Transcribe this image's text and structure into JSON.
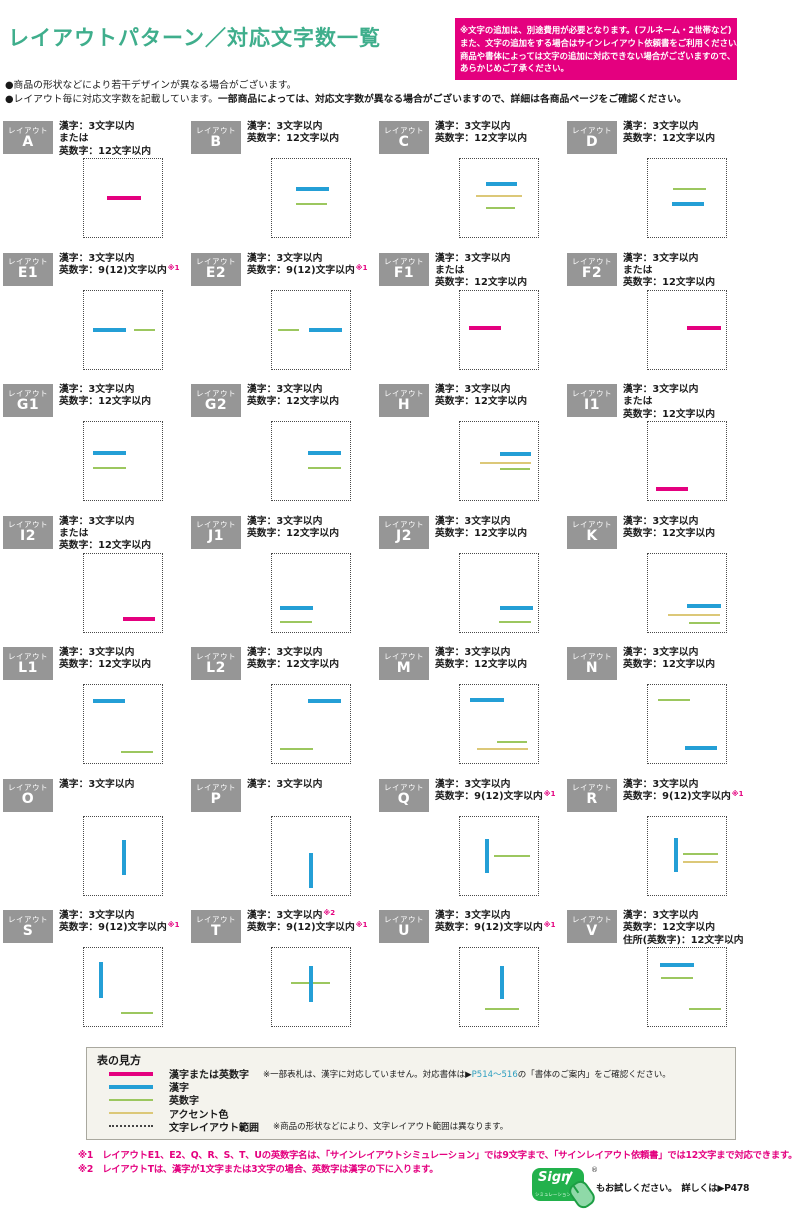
{
  "page": {
    "title": "レイアウトパターン／対応文字数一覧",
    "bullet1": "●商品の形状などにより若干デザインが異なる場合がございます。",
    "bullet2_normal": "●レイアウト毎に対応文字数を記載しています。",
    "bullet2_bold": "一部商品によっては、対応文字数が異なる場合がございますので、詳細は各商品ページをご確認ください。"
  },
  "notice": {
    "lines": [
      "※文字の追加は、別途費用が必要となります。(フルネーム・2世帯など)",
      "また、文字の追加をする場合はサインレイアウト依頼書をご利用ください。",
      "商品や書体によっては文字の追加に対応できない場合がございますので、",
      "あらかじめご了承ください。"
    ]
  },
  "grid": {
    "tag_label": "レイアウト",
    "cells": [
      {
        "id": "A",
        "specs": [
          {
            "t": "漢字：3文字以内"
          },
          {
            "t": "または"
          },
          {
            "t": "英数字：12文字以内"
          }
        ],
        "lines": [
          {
            "o": "h",
            "c": "pink",
            "x": 30,
            "y": 48,
            "l": 43
          }
        ]
      },
      {
        "id": "B",
        "specs": [
          {
            "t": "漢字：3文字以内"
          },
          {
            "t": "英数字：12文字以内"
          }
        ],
        "lines": [
          {
            "o": "h",
            "c": "blue",
            "x": 31,
            "y": 36,
            "l": 42
          },
          {
            "o": "h",
            "c": "green",
            "x": 31,
            "y": 56,
            "l": 40
          }
        ]
      },
      {
        "id": "C",
        "specs": [
          {
            "t": "漢字：3文字以内"
          },
          {
            "t": "英数字：12文字以内"
          }
        ],
        "lines": [
          {
            "o": "h",
            "c": "blue",
            "x": 33,
            "y": 29,
            "l": 40
          },
          {
            "o": "h",
            "c": "yellow",
            "x": 20,
            "y": 46,
            "l": 60
          },
          {
            "o": "h",
            "c": "green",
            "x": 33,
            "y": 61,
            "l": 37
          }
        ]
      },
      {
        "id": "D",
        "specs": [
          {
            "t": "漢字：3文字以内"
          },
          {
            "t": "英数字：12文字以内"
          }
        ],
        "lines": [
          {
            "o": "h",
            "c": "green",
            "x": 32,
            "y": 37,
            "l": 42
          },
          {
            "o": "h",
            "c": "blue",
            "x": 31,
            "y": 55,
            "l": 41
          }
        ]
      },
      {
        "id": "E1",
        "specs": [
          {
            "t": "漢字：3文字以内"
          },
          {
            "t": "英数字：9(12)文字以内",
            "sup": "※1"
          }
        ],
        "lines": [
          {
            "o": "h",
            "c": "blue",
            "x": 11,
            "y": 48,
            "l": 43
          },
          {
            "o": "h",
            "c": "green",
            "x": 64,
            "y": 49,
            "l": 27
          }
        ]
      },
      {
        "id": "E2",
        "specs": [
          {
            "t": "漢字：3文字以内"
          },
          {
            "t": "英数字：9(12)文字以内",
            "sup": "※1"
          }
        ],
        "lines": [
          {
            "o": "h",
            "c": "green",
            "x": 8,
            "y": 49,
            "l": 26
          },
          {
            "o": "h",
            "c": "blue",
            "x": 47,
            "y": 48,
            "l": 43
          }
        ]
      },
      {
        "id": "F1",
        "specs": [
          {
            "t": "漢字：3文字以内"
          },
          {
            "t": "または"
          },
          {
            "t": "英数字：12文字以内"
          }
        ],
        "lines": [
          {
            "o": "h",
            "c": "pink",
            "x": 11,
            "y": 46,
            "l": 42
          }
        ]
      },
      {
        "id": "F2",
        "specs": [
          {
            "t": "漢字：3文字以内"
          },
          {
            "t": "または"
          },
          {
            "t": "英数字：12文字以内"
          }
        ],
        "lines": [
          {
            "o": "h",
            "c": "pink",
            "x": 50,
            "y": 46,
            "l": 43
          }
        ]
      },
      {
        "id": "G1",
        "specs": [
          {
            "t": "漢字：3文字以内"
          },
          {
            "t": "英数字：12文字以内"
          }
        ],
        "lines": [
          {
            "o": "h",
            "c": "blue",
            "x": 12,
            "y": 37,
            "l": 42
          },
          {
            "o": "h",
            "c": "green",
            "x": 12,
            "y": 58,
            "l": 42
          }
        ]
      },
      {
        "id": "G2",
        "specs": [
          {
            "t": "漢字：3文字以内"
          },
          {
            "t": "英数字：12文字以内"
          }
        ],
        "lines": [
          {
            "o": "h",
            "c": "blue",
            "x": 46,
            "y": 37,
            "l": 42
          },
          {
            "o": "h",
            "c": "green",
            "x": 46,
            "y": 58,
            "l": 42
          }
        ]
      },
      {
        "id": "H",
        "specs": [
          {
            "t": "漢字：3文字以内"
          },
          {
            "t": "英数字：12文字以内"
          }
        ],
        "lines": [
          {
            "o": "h",
            "c": "blue",
            "x": 51,
            "y": 39,
            "l": 40
          },
          {
            "o": "h",
            "c": "yellow",
            "x": 26,
            "y": 51,
            "l": 65
          },
          {
            "o": "h",
            "c": "green",
            "x": 51,
            "y": 59,
            "l": 39
          }
        ]
      },
      {
        "id": "I1",
        "specs": [
          {
            "t": "漢字：3文字以内"
          },
          {
            "t": "または"
          },
          {
            "t": "英数字：12文字以内"
          }
        ],
        "lines": [
          {
            "o": "h",
            "c": "pink",
            "x": 10,
            "y": 83,
            "l": 41
          }
        ]
      },
      {
        "id": "I2",
        "specs": [
          {
            "t": "漢字：3文字以内"
          },
          {
            "t": "または"
          },
          {
            "t": "英数字：12文字以内"
          }
        ],
        "lines": [
          {
            "o": "h",
            "c": "pink",
            "x": 50,
            "y": 82,
            "l": 41
          }
        ]
      },
      {
        "id": "J1",
        "specs": [
          {
            "t": "漢字：3文字以内"
          },
          {
            "t": "英数字：12文字以内"
          }
        ],
        "lines": [
          {
            "o": "h",
            "c": "blue",
            "x": 10,
            "y": 67,
            "l": 43
          },
          {
            "o": "h",
            "c": "green",
            "x": 10,
            "y": 87,
            "l": 41
          }
        ]
      },
      {
        "id": "J2",
        "specs": [
          {
            "t": "漢字：3文字以内"
          },
          {
            "t": "英数字：12文字以内"
          }
        ],
        "lines": [
          {
            "o": "h",
            "c": "blue",
            "x": 51,
            "y": 67,
            "l": 42
          },
          {
            "o": "h",
            "c": "green",
            "x": 50,
            "y": 87,
            "l": 41
          }
        ]
      },
      {
        "id": "K",
        "specs": [
          {
            "t": "漢字：3文字以内"
          },
          {
            "t": "英数字：12文字以内"
          }
        ],
        "lines": [
          {
            "o": "h",
            "c": "blue",
            "x": 50,
            "y": 65,
            "l": 43
          },
          {
            "o": "h",
            "c": "yellow",
            "x": 25,
            "y": 77,
            "l": 67
          },
          {
            "o": "h",
            "c": "green",
            "x": 52,
            "y": 88,
            "l": 40
          }
        ]
      },
      {
        "id": "L1",
        "specs": [
          {
            "t": "漢字：3文字以内"
          },
          {
            "t": "英数字：12文字以内"
          }
        ],
        "lines": [
          {
            "o": "h",
            "c": "blue",
            "x": 11,
            "y": 18,
            "l": 42
          },
          {
            "o": "h",
            "c": "green",
            "x": 47,
            "y": 84,
            "l": 41
          }
        ]
      },
      {
        "id": "L2",
        "specs": [
          {
            "t": "漢字：3文字以内"
          },
          {
            "t": "英数字：12文字以内"
          }
        ],
        "lines": [
          {
            "o": "h",
            "c": "blue",
            "x": 46,
            "y": 18,
            "l": 42
          },
          {
            "o": "h",
            "c": "green",
            "x": 10,
            "y": 81,
            "l": 42
          }
        ]
      },
      {
        "id": "M",
        "specs": [
          {
            "t": "漢字：3文字以内"
          },
          {
            "t": "英数字：12文字以内"
          }
        ],
        "lines": [
          {
            "o": "h",
            "c": "blue",
            "x": 13,
            "y": 17,
            "l": 43
          },
          {
            "o": "h",
            "c": "green",
            "x": 48,
            "y": 72,
            "l": 38
          },
          {
            "o": "h",
            "c": "yellow",
            "x": 22,
            "y": 81,
            "l": 65
          }
        ]
      },
      {
        "id": "N",
        "specs": [
          {
            "t": "漢字：3文字以内"
          },
          {
            "t": "英数字：12文字以内"
          }
        ],
        "lines": [
          {
            "o": "h",
            "c": "green",
            "x": 13,
            "y": 18,
            "l": 41
          },
          {
            "o": "h",
            "c": "blue",
            "x": 47,
            "y": 78,
            "l": 42
          }
        ]
      },
      {
        "id": "O",
        "specs": [
          {
            "t": "漢字：3文字以内"
          }
        ],
        "lines": [
          {
            "o": "v",
            "c": "blue",
            "x": 49,
            "y": 30,
            "l": 45
          }
        ]
      },
      {
        "id": "P",
        "specs": [
          {
            "t": "漢字：3文字以内"
          }
        ],
        "lines": [
          {
            "o": "v",
            "c": "blue",
            "x": 48,
            "y": 47,
            "l": 45
          }
        ]
      },
      {
        "id": "Q",
        "specs": [
          {
            "t": "漢字：3文字以内"
          },
          {
            "t": "英数字：9(12)文字以内",
            "sup": "※1"
          }
        ],
        "lines": [
          {
            "o": "v",
            "c": "blue",
            "x": 32,
            "y": 29,
            "l": 43
          },
          {
            "o": "h",
            "c": "green",
            "x": 44,
            "y": 49,
            "l": 46
          }
        ]
      },
      {
        "id": "R",
        "specs": [
          {
            "t": "漢字：3文字以内"
          },
          {
            "t": "英数字：9(12)文字以内",
            "sup": "※1"
          }
        ],
        "lines": [
          {
            "o": "v",
            "c": "blue",
            "x": 33,
            "y": 27,
            "l": 44
          },
          {
            "o": "h",
            "c": "green",
            "x": 45,
            "y": 47,
            "l": 45
          },
          {
            "o": "h",
            "c": "yellow",
            "x": 45,
            "y": 57,
            "l": 45
          }
        ]
      },
      {
        "id": "S",
        "specs": [
          {
            "t": "漢字：3文字以内"
          },
          {
            "t": "英数字：9(12)文字以内",
            "sup": "※1"
          }
        ],
        "lines": [
          {
            "o": "v",
            "c": "blue",
            "x": 19,
            "y": 18,
            "l": 46
          },
          {
            "o": "h",
            "c": "green",
            "x": 48,
            "y": 82,
            "l": 41
          }
        ]
      },
      {
        "id": "T",
        "specs": [
          {
            "t": "漢字：3文字以内",
            "sup": "※2"
          },
          {
            "t": "英数字：9(12)文字以内",
            "sup": "※1"
          }
        ],
        "lines": [
          {
            "o": "h",
            "c": "green",
            "x": 24,
            "y": 44,
            "l": 50
          },
          {
            "o": "v",
            "c": "blue",
            "x": 48,
            "y": 23,
            "l": 46
          }
        ]
      },
      {
        "id": "U",
        "specs": [
          {
            "t": "漢字：3文字以内"
          },
          {
            "t": "英数字：9(12)文字以内",
            "sup": "※1"
          }
        ],
        "lines": [
          {
            "o": "v",
            "c": "blue",
            "x": 51,
            "y": 23,
            "l": 43
          },
          {
            "o": "h",
            "c": "green",
            "x": 32,
            "y": 77,
            "l": 44
          }
        ]
      },
      {
        "id": "V",
        "specs": [
          {
            "t": "漢字：3文字以内"
          },
          {
            "t": "英数字：12文字以内"
          },
          {
            "t": "住所(英数字)：12文字以内"
          }
        ],
        "lines": [
          {
            "o": "h",
            "c": "blue",
            "x": 16,
            "y": 19,
            "l": 43
          },
          {
            "o": "h",
            "c": "green",
            "x": 17,
            "y": 37,
            "l": 41
          },
          {
            "o": "h",
            "c": "green",
            "x": 53,
            "y": 77,
            "l": 41
          }
        ]
      }
    ]
  },
  "legend": {
    "title": "表の見方",
    "rows": [
      {
        "swatch": "pink",
        "label": "漢字または英数字",
        "note_pre": "※一部表札は、漢字に対応していません。対応書体は▶",
        "link": "P514〜516",
        "note_post": "の「書体のご案内」をご確認ください。"
      },
      {
        "swatch": "blue",
        "label": "漢字"
      },
      {
        "swatch": "green",
        "label": "英数字"
      },
      {
        "swatch": "yellow",
        "label": "アクセント色"
      },
      {
        "swatch": "dotted",
        "label": "文字レイアウト範囲",
        "note_pre": "※商品の形状などにより、文字レイアウト範囲は異なります。"
      }
    ]
  },
  "footnotes": {
    "fn1": "※1　レイアウトE1、E2、Q、R、S、T、Uの英数字名は、「サインレイアウトシミュレーション」では9文字まで、「サインレイアウト依頼書」では12文字まで対応できます。",
    "fn2": "※2　レイアウトTは、漢字が1文字または3文字の場合、英数字は漢字の下に入ります。"
  },
  "logo": {
    "brand": "Sign",
    "brand_sub": "シミュレーション",
    "reg": "®",
    "caption_pre": "もお試しください。　詳しくは",
    "caption_link": "▶P478"
  },
  "colors": {
    "accent_pink": "#E4007F",
    "title_green": "#3FAE8C",
    "line_blue": "#249FD6",
    "line_green": "#9CC75F",
    "line_yellow": "#DCC878",
    "tag_gray": "#969696",
    "logo_green": "#22B14C",
    "link_teal": "#2E9FC0"
  }
}
